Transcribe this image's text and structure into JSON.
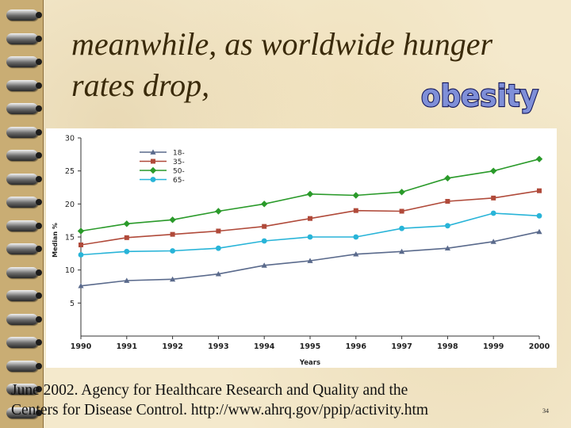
{
  "slide": {
    "title_lines": [
      "meanwhile, as worldwide hunger",
      "rates drop,"
    ],
    "graphic_word": "obesity",
    "caption_lines": [
      "June 2002. Agency for Healthcare Research and Quality and the",
      "Centers for Disease Control. http://www.ahrq.gov/ppip/activity.htm"
    ],
    "slide_number": "34"
  },
  "colors": {
    "title": "#3a2a0a",
    "obesity_fill": "#7f8fd8",
    "obesity_stroke": "#10145a",
    "binding": "#c9ad74"
  },
  "chart_data": {
    "type": "line",
    "title": "",
    "xlabel": "Years",
    "ylabel": "Median %",
    "x": [
      "1990",
      "1991",
      "1992",
      "1993",
      "1994",
      "1995",
      "1996",
      "1997",
      "1998",
      "1999",
      "2000"
    ],
    "xlim": [
      1990,
      2000
    ],
    "ylim": [
      0,
      30
    ],
    "yticks": [
      5,
      10,
      15,
      20,
      25,
      30
    ],
    "grid": false,
    "legend_position": "top-left",
    "series": [
      {
        "name": "18-",
        "color": "#5a6a8c",
        "marker": "triangle",
        "values": [
          7.6,
          8.4,
          8.6,
          9.4,
          10.7,
          11.4,
          12.4,
          12.8,
          13.3,
          14.3,
          15.8
        ]
      },
      {
        "name": "35-",
        "color": "#b04a3a",
        "marker": "square",
        "values": [
          13.8,
          14.9,
          15.4,
          15.9,
          16.6,
          17.8,
          19.0,
          18.9,
          20.4,
          20.9,
          22.0
        ]
      },
      {
        "name": "50-",
        "color": "#2a9a2a",
        "marker": "diamond",
        "values": [
          15.9,
          17.0,
          17.6,
          18.9,
          20.0,
          21.5,
          21.3,
          21.8,
          23.9,
          25.0,
          26.8
        ]
      },
      {
        "name": "65-",
        "color": "#28b4d8",
        "marker": "circle",
        "values": [
          12.3,
          12.8,
          12.9,
          13.3,
          14.4,
          15.0,
          15.0,
          16.3,
          16.7,
          18.6,
          18.2
        ]
      }
    ]
  }
}
